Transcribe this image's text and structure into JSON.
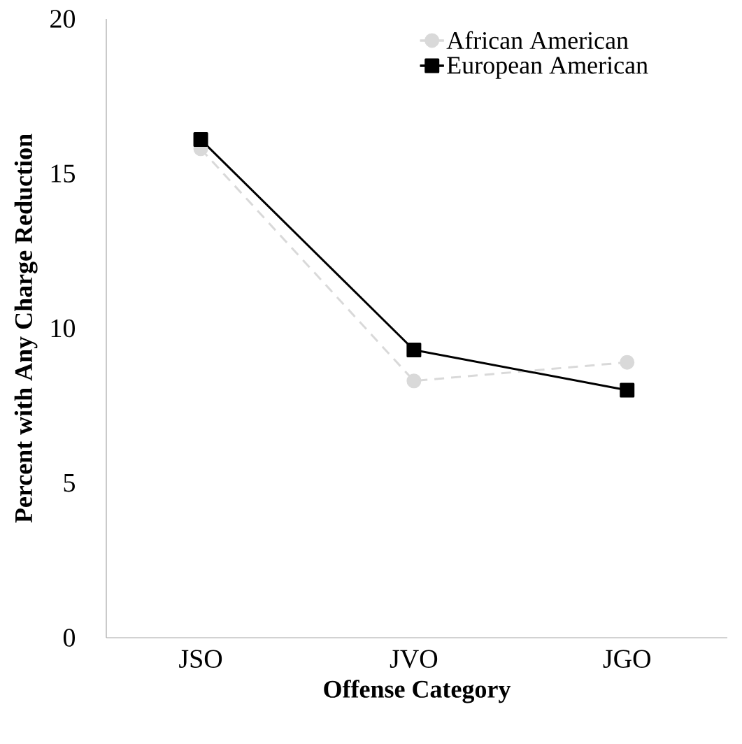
{
  "chart_data": {
    "type": "line",
    "xlabel": "Offense Category",
    "ylabel": "Percent with Any Charge Reduction",
    "categories": [
      "JSO",
      "JVO",
      "JGO"
    ],
    "series": [
      {
        "name": "African American",
        "color": "#d9d9d9",
        "values": [
          15.8,
          8.3,
          8.9
        ],
        "marker": "circle",
        "line_style": "dashed"
      },
      {
        "name": "European American",
        "color": "#000000",
        "values": [
          16.1,
          9.3,
          8.0
        ],
        "marker": "square",
        "line_style": "solid"
      }
    ],
    "ylim": [
      0,
      20
    ],
    "yticks": [
      0,
      5,
      10,
      15,
      20
    ],
    "grid": false,
    "legend": "top right"
  }
}
